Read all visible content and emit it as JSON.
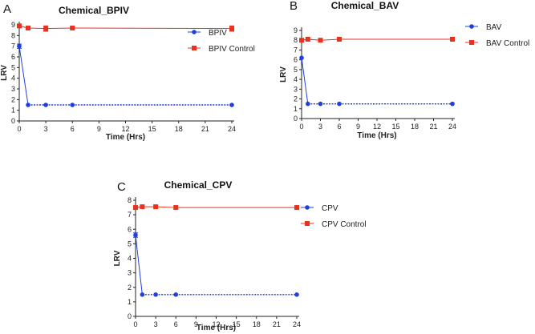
{
  "chart_data": [
    {
      "panel": "A",
      "type": "line",
      "title": "Chemical_BPIV",
      "xlabel": "Time (Hrs)",
      "ylabel": "LRV",
      "xlim": [
        0,
        24
      ],
      "ylim": [
        0,
        9
      ],
      "xticks": [
        0,
        3,
        6,
        9,
        12,
        15,
        18,
        21,
        24
      ],
      "yticks": [
        0,
        1,
        2,
        3,
        4,
        5,
        6,
        7,
        8,
        9
      ],
      "legend_position": "right",
      "series": [
        {
          "name": "BPIV",
          "color": "#1f3fe0",
          "marker": "circle",
          "x": [
            0,
            1,
            3,
            6,
            24
          ],
          "y": [
            7.0,
            1.5,
            1.5,
            1.5,
            1.5
          ],
          "err": [
            0.2,
            0,
            0,
            0,
            0
          ]
        },
        {
          "name": "BPIV Control",
          "color": "#e8321e",
          "marker": "square",
          "x": [
            0,
            1,
            3,
            6,
            24
          ],
          "y": [
            8.9,
            8.7,
            8.65,
            8.7,
            8.65
          ],
          "err": [
            0.1,
            0.1,
            0.25,
            0.1,
            0.25
          ]
        }
      ]
    },
    {
      "panel": "B",
      "type": "line",
      "title": "Chemical_BAV",
      "xlabel": "Time (Hrs)",
      "ylabel": "LRV",
      "xlim": [
        0,
        24
      ],
      "ylim": [
        0,
        9
      ],
      "xticks": [
        0,
        3,
        6,
        9,
        12,
        15,
        18,
        21,
        24
      ],
      "yticks": [
        0,
        1,
        2,
        3,
        4,
        5,
        6,
        7,
        8,
        9
      ],
      "legend_position": "right",
      "series": [
        {
          "name": "BAV",
          "color": "#1f3fe0",
          "marker": "circle",
          "x": [
            0,
            1,
            3,
            6,
            24
          ],
          "y": [
            6.2,
            1.5,
            1.5,
            1.5,
            1.5
          ],
          "err": [
            0,
            0,
            0,
            0,
            0
          ]
        },
        {
          "name": "BAV Control",
          "color": "#e8321e",
          "marker": "square",
          "x": [
            0,
            1,
            3,
            6,
            24
          ],
          "y": [
            8.0,
            8.1,
            8.0,
            8.1,
            8.1
          ],
          "err": [
            0,
            0,
            0,
            0,
            0
          ]
        }
      ]
    },
    {
      "panel": "C",
      "type": "line",
      "title": "Chemical_CPV",
      "xlabel": "Time (Hrs)",
      "ylabel": "LRV",
      "xlim": [
        0,
        24
      ],
      "ylim": [
        0,
        8
      ],
      "xticks": [
        0,
        3,
        6,
        9,
        12,
        15,
        18,
        21,
        24
      ],
      "yticks": [
        0,
        1,
        2,
        3,
        4,
        5,
        6,
        7,
        8
      ],
      "legend_position": "right",
      "series": [
        {
          "name": "CPV",
          "color": "#1f3fe0",
          "marker": "circle",
          "x": [
            0,
            1,
            3,
            6,
            24
          ],
          "y": [
            5.6,
            1.5,
            1.5,
            1.5,
            1.5
          ],
          "err": [
            0.15,
            0,
            0,
            0,
            0
          ]
        },
        {
          "name": "CPV Control",
          "color": "#e8321e",
          "marker": "square",
          "x": [
            0,
            1,
            3,
            6,
            24
          ],
          "y": [
            7.5,
            7.55,
            7.55,
            7.5,
            7.5
          ],
          "err": [
            0,
            0,
            0,
            0,
            0
          ]
        }
      ]
    }
  ]
}
